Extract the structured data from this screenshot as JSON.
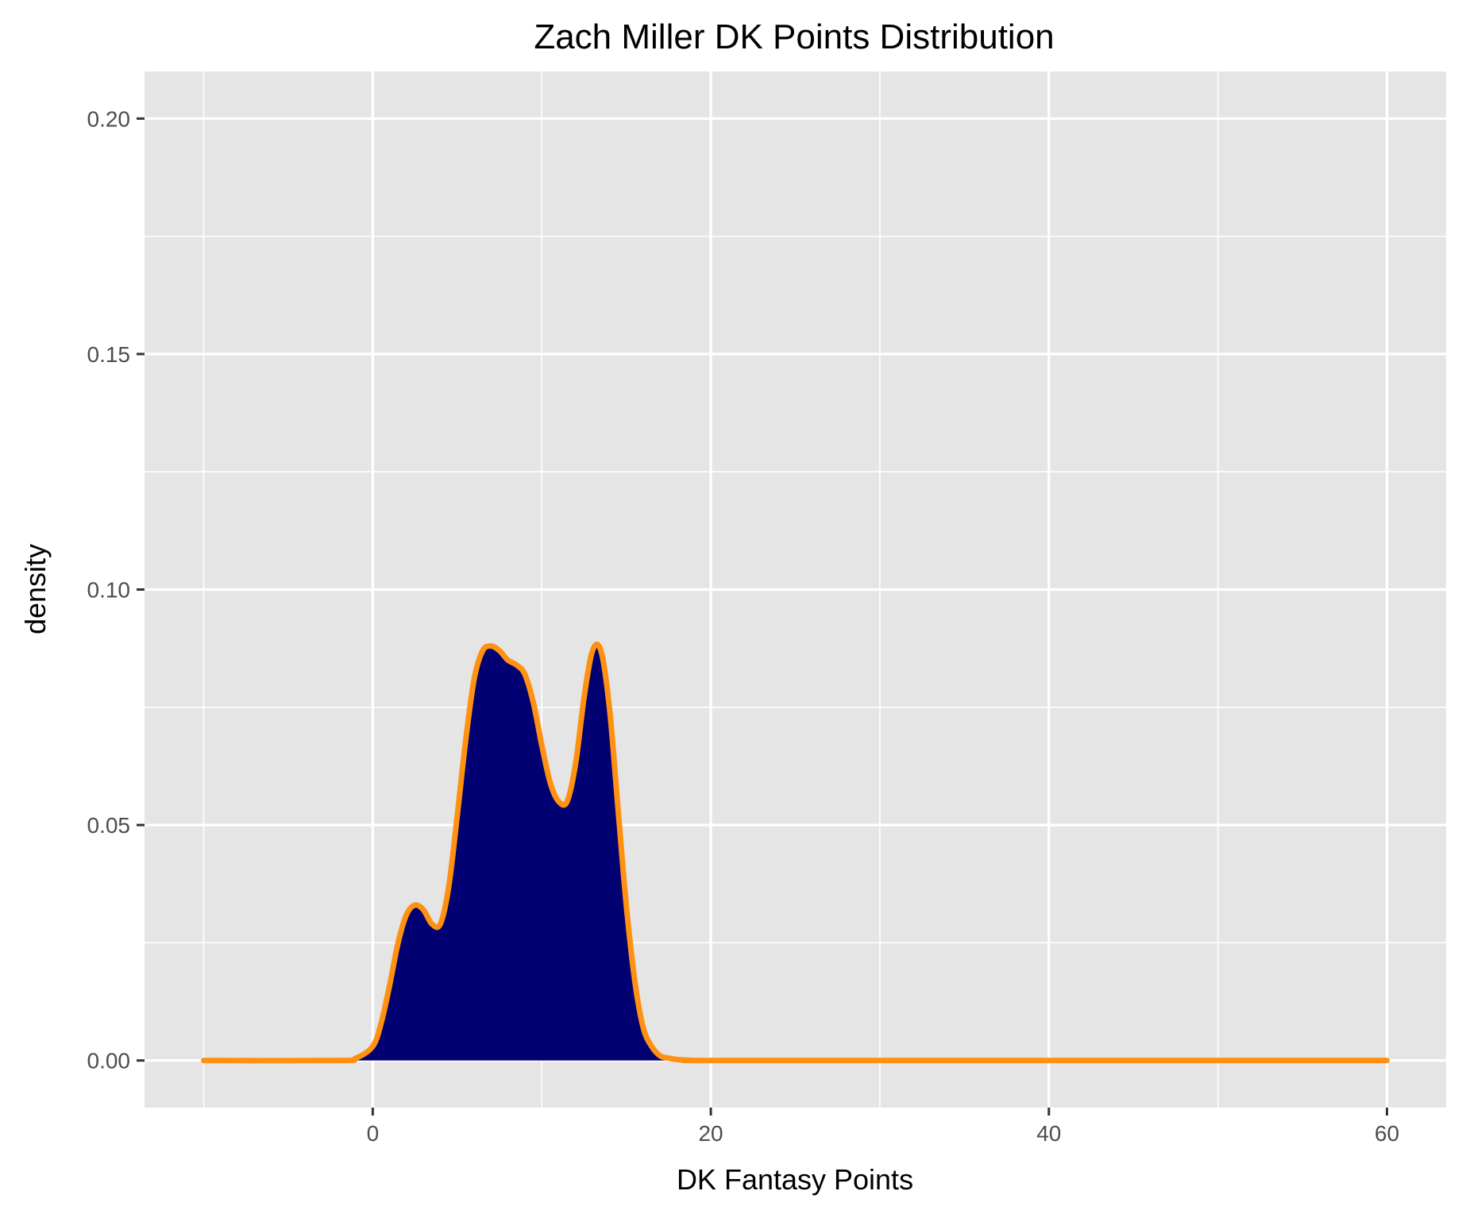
{
  "chart_data": {
    "type": "area",
    "title": "Zach Miller DK Points Distribution",
    "xlabel": "DK Fantasy Points",
    "ylabel": "density",
    "xlim": [
      -13.5,
      63.5
    ],
    "ylim": [
      -0.01,
      0.21
    ],
    "x_ticks": [
      0,
      20,
      40,
      60
    ],
    "x_tick_labels": [
      "0",
      "20",
      "40",
      "60"
    ],
    "y_ticks": [
      0,
      0.05,
      0.1,
      0.15,
      0.2
    ],
    "y_tick_labels": [
      "0.00",
      "0.05",
      "0.10",
      "0.15",
      "0.20"
    ],
    "grid": true,
    "colors": {
      "panel": "#e5e5e5",
      "grid": "#ffffff",
      "fill": "#000073",
      "line": "#ff9112",
      "tick": "#333333"
    },
    "series": [
      {
        "x": [
          -10,
          -2,
          -1,
          0,
          0.5,
          1,
          1.5,
          2,
          2.5,
          3,
          3.5,
          4,
          4.5,
          5,
          5.5,
          6,
          6.5,
          7,
          7.5,
          8,
          8.5,
          9,
          9.5,
          10,
          10.5,
          11,
          11.5,
          12,
          12.5,
          13,
          13.5,
          14,
          14.5,
          15,
          15.5,
          16,
          16.5,
          17,
          17.5,
          18,
          18.5,
          19,
          19.5,
          20,
          40,
          60
        ],
        "y": [
          0,
          0,
          0.0005,
          0.003,
          0.008,
          0.016,
          0.025,
          0.031,
          0.033,
          0.032,
          0.029,
          0.029,
          0.037,
          0.052,
          0.068,
          0.081,
          0.087,
          0.088,
          0.087,
          0.085,
          0.084,
          0.082,
          0.076,
          0.067,
          0.059,
          0.055,
          0.055,
          0.063,
          0.077,
          0.087,
          0.087,
          0.075,
          0.054,
          0.033,
          0.017,
          0.007,
          0.003,
          0.001,
          0.0005,
          0.0002,
          0.0001,
          0,
          0,
          0,
          0,
          0
        ]
      }
    ]
  }
}
